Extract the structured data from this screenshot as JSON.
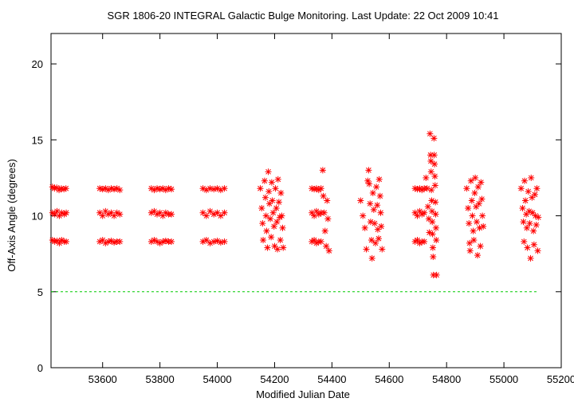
{
  "chart_data": {
    "type": "scatter",
    "title": "SGR 1806-20   INTEGRAL Galactic Bulge Monitoring.  Last Update: 22 Oct 2009 10:41",
    "xlabel": "Modified Julian Date",
    "ylabel": "Off-Axis Angle (degrees)",
    "xlim": [
      53420,
      55200
    ],
    "ylim": [
      0,
      22
    ],
    "xticks": [
      53600,
      53800,
      54000,
      54200,
      54400,
      54600,
      54800,
      55000,
      55200
    ],
    "yticks": [
      0,
      5,
      10,
      15,
      20
    ],
    "grid": false,
    "reference_line": {
      "y": 5,
      "x_range": [
        53420,
        55120
      ],
      "color": "#00cc00",
      "style": "dashed"
    },
    "series": [
      {
        "marker": "asterisk",
        "color": "#ff0000",
        "points": [
          [
            53425,
            11.9
          ],
          [
            53432,
            11.8
          ],
          [
            53440,
            11.85
          ],
          [
            53448,
            11.7
          ],
          [
            53456,
            11.8
          ],
          [
            53465,
            11.75
          ],
          [
            53472,
            11.8
          ],
          [
            53425,
            10.2
          ],
          [
            53433,
            10.1
          ],
          [
            53441,
            10.3
          ],
          [
            53449,
            10.0
          ],
          [
            53457,
            10.2
          ],
          [
            53466,
            10.1
          ],
          [
            53473,
            10.2
          ],
          [
            53425,
            8.4
          ],
          [
            53433,
            8.3
          ],
          [
            53441,
            8.35
          ],
          [
            53449,
            8.2
          ],
          [
            53457,
            8.4
          ],
          [
            53466,
            8.3
          ],
          [
            53473,
            8.3
          ],
          [
            53590,
            11.8
          ],
          [
            53600,
            11.75
          ],
          [
            53610,
            11.8
          ],
          [
            53620,
            11.7
          ],
          [
            53630,
            11.8
          ],
          [
            53640,
            11.75
          ],
          [
            53650,
            11.8
          ],
          [
            53660,
            11.7
          ],
          [
            53590,
            10.2
          ],
          [
            53600,
            10.0
          ],
          [
            53610,
            10.3
          ],
          [
            53620,
            10.1
          ],
          [
            53630,
            10.2
          ],
          [
            53640,
            10.0
          ],
          [
            53650,
            10.2
          ],
          [
            53660,
            10.1
          ],
          [
            53590,
            8.3
          ],
          [
            53600,
            8.4
          ],
          [
            53610,
            8.2
          ],
          [
            53620,
            8.3
          ],
          [
            53630,
            8.35
          ],
          [
            53640,
            8.25
          ],
          [
            53650,
            8.3
          ],
          [
            53660,
            8.3
          ],
          [
            53770,
            11.8
          ],
          [
            53780,
            11.7
          ],
          [
            53790,
            11.8
          ],
          [
            53800,
            11.75
          ],
          [
            53810,
            11.8
          ],
          [
            53820,
            11.7
          ],
          [
            53830,
            11.8
          ],
          [
            53840,
            11.75
          ],
          [
            53770,
            10.2
          ],
          [
            53780,
            10.3
          ],
          [
            53790,
            10.1
          ],
          [
            53800,
            10.2
          ],
          [
            53810,
            10.0
          ],
          [
            53820,
            10.2
          ],
          [
            53830,
            10.1
          ],
          [
            53840,
            10.1
          ],
          [
            53770,
            8.3
          ],
          [
            53780,
            8.4
          ],
          [
            53790,
            8.3
          ],
          [
            53800,
            8.2
          ],
          [
            53810,
            8.3
          ],
          [
            53820,
            8.35
          ],
          [
            53830,
            8.3
          ],
          [
            53840,
            8.3
          ],
          [
            53950,
            11.8
          ],
          [
            53962,
            11.7
          ],
          [
            53975,
            11.8
          ],
          [
            53988,
            11.75
          ],
          [
            54000,
            11.8
          ],
          [
            54012,
            11.7
          ],
          [
            54025,
            11.8
          ],
          [
            53950,
            10.2
          ],
          [
            53962,
            10.0
          ],
          [
            53975,
            10.3
          ],
          [
            53988,
            10.1
          ],
          [
            54000,
            10.2
          ],
          [
            54012,
            10.0
          ],
          [
            54025,
            10.2
          ],
          [
            53950,
            8.3
          ],
          [
            53962,
            8.4
          ],
          [
            53975,
            8.2
          ],
          [
            53988,
            8.3
          ],
          [
            54000,
            8.35
          ],
          [
            54012,
            8.25
          ],
          [
            54025,
            8.3
          ],
          [
            54150,
            11.8
          ],
          [
            54155,
            10.5
          ],
          [
            54158,
            9.5
          ],
          [
            54160,
            8.4
          ],
          [
            54165,
            12.3
          ],
          [
            54168,
            11.2
          ],
          [
            54170,
            10.0
          ],
          [
            54172,
            9.0
          ],
          [
            54175,
            7.9
          ],
          [
            54178,
            12.9
          ],
          [
            54180,
            11.6
          ],
          [
            54182,
            10.8
          ],
          [
            54185,
            9.8
          ],
          [
            54188,
            8.6
          ],
          [
            54190,
            12.2
          ],
          [
            54192,
            11.0
          ],
          [
            54195,
            10.2
          ],
          [
            54198,
            9.3
          ],
          [
            54200,
            8.0
          ],
          [
            54203,
            11.8
          ],
          [
            54206,
            10.5
          ],
          [
            54208,
            9.6
          ],
          [
            54210,
            7.8
          ],
          [
            54212,
            12.4
          ],
          [
            54215,
            10.9
          ],
          [
            54218,
            9.9
          ],
          [
            54220,
            8.4
          ],
          [
            54222,
            11.5
          ],
          [
            54225,
            10.0
          ],
          [
            54228,
            9.2
          ],
          [
            54230,
            7.9
          ],
          [
            54330,
            11.8
          ],
          [
            54338,
            11.75
          ],
          [
            54346,
            11.8
          ],
          [
            54354,
            11.7
          ],
          [
            54362,
            11.8
          ],
          [
            54330,
            10.2
          ],
          [
            54338,
            10.0
          ],
          [
            54346,
            10.3
          ],
          [
            54354,
            10.1
          ],
          [
            54362,
            10.2
          ],
          [
            54330,
            8.3
          ],
          [
            54338,
            8.4
          ],
          [
            54346,
            8.2
          ],
          [
            54354,
            8.3
          ],
          [
            54362,
            8.3
          ],
          [
            54368,
            13.0
          ],
          [
            54370,
            11.3
          ],
          [
            54373,
            10.2
          ],
          [
            54376,
            9.0
          ],
          [
            54380,
            8.0
          ],
          [
            54383,
            11.0
          ],
          [
            54386,
            9.8
          ],
          [
            54390,
            7.7
          ],
          [
            54500,
            11.0
          ],
          [
            54508,
            10.0
          ],
          [
            54515,
            9.2
          ],
          [
            54520,
            7.8
          ],
          [
            54525,
            12.3
          ],
          [
            54528,
            13.0
          ],
          [
            54530,
            12.1
          ],
          [
            54533,
            10.8
          ],
          [
            54535,
            9.6
          ],
          [
            54538,
            8.4
          ],
          [
            54540,
            7.2
          ],
          [
            54543,
            11.5
          ],
          [
            54546,
            10.4
          ],
          [
            54549,
            9.5
          ],
          [
            54552,
            8.2
          ],
          [
            54555,
            11.9
          ],
          [
            54558,
            10.7
          ],
          [
            54560,
            9.1
          ],
          [
            54563,
            8.5
          ],
          [
            54565,
            12.4
          ],
          [
            54568,
            11.3
          ],
          [
            54570,
            10.2
          ],
          [
            54572,
            9.3
          ],
          [
            54575,
            7.8
          ],
          [
            54690,
            11.8
          ],
          [
            54698,
            11.75
          ],
          [
            54706,
            11.8
          ],
          [
            54714,
            11.7
          ],
          [
            54722,
            11.8
          ],
          [
            54690,
            10.2
          ],
          [
            54698,
            10.0
          ],
          [
            54706,
            10.3
          ],
          [
            54714,
            10.1
          ],
          [
            54722,
            10.2
          ],
          [
            54690,
            8.3
          ],
          [
            54698,
            8.4
          ],
          [
            54706,
            8.2
          ],
          [
            54714,
            8.3
          ],
          [
            54722,
            8.3
          ],
          [
            54728,
            12.5
          ],
          [
            54732,
            11.8
          ],
          [
            54735,
            10.6
          ],
          [
            54738,
            9.8
          ],
          [
            54740,
            8.9
          ],
          [
            54742,
            15.4
          ],
          [
            54744,
            14.0
          ],
          [
            54745,
            13.6
          ],
          [
            54746,
            12.9
          ],
          [
            54747,
            11.7
          ],
          [
            54748,
            11.0
          ],
          [
            54749,
            10.3
          ],
          [
            54750,
            9.6
          ],
          [
            54751,
            8.8
          ],
          [
            54752,
            7.9
          ],
          [
            54753,
            7.3
          ],
          [
            54754,
            6.1
          ],
          [
            54756,
            15.1
          ],
          [
            54757,
            14.0
          ],
          [
            54758,
            13.4
          ],
          [
            54759,
            12.6
          ],
          [
            54760,
            12.0
          ],
          [
            54761,
            10.9
          ],
          [
            54762,
            10.1
          ],
          [
            54763,
            9.2
          ],
          [
            54764,
            8.4
          ],
          [
            54765,
            6.1
          ],
          [
            54870,
            11.8
          ],
          [
            54875,
            10.5
          ],
          [
            54878,
            9.5
          ],
          [
            54880,
            8.2
          ],
          [
            54882,
            7.7
          ],
          [
            54885,
            12.3
          ],
          [
            54888,
            11.0
          ],
          [
            54890,
            10.0
          ],
          [
            54893,
            9.0
          ],
          [
            54895,
            8.4
          ],
          [
            54898,
            11.5
          ],
          [
            54900,
            12.5
          ],
          [
            54903,
            10.6
          ],
          [
            54905,
            9.6
          ],
          [
            54908,
            7.4
          ],
          [
            54910,
            11.9
          ],
          [
            54913,
            10.8
          ],
          [
            54915,
            9.2
          ],
          [
            54918,
            8.0
          ],
          [
            54920,
            12.2
          ],
          [
            54923,
            11.1
          ],
          [
            54925,
            10.0
          ],
          [
            54928,
            9.3
          ],
          [
            55060,
            11.8
          ],
          [
            55065,
            10.5
          ],
          [
            55068,
            9.6
          ],
          [
            55070,
            8.3
          ],
          [
            55072,
            12.3
          ],
          [
            55075,
            11.0
          ],
          [
            55078,
            10.1
          ],
          [
            55080,
            9.2
          ],
          [
            55082,
            7.9
          ],
          [
            55085,
            11.6
          ],
          [
            55088,
            10.3
          ],
          [
            55090,
            9.5
          ],
          [
            55093,
            7.2
          ],
          [
            55095,
            12.5
          ],
          [
            55098,
            11.2
          ],
          [
            55100,
            10.2
          ],
          [
            55103,
            9.0
          ],
          [
            55105,
            8.1
          ],
          [
            55108,
            11.4
          ],
          [
            55110,
            10.0
          ],
          [
            55113,
            9.4
          ],
          [
            55115,
            11.8
          ],
          [
            55118,
            7.7
          ],
          [
            55120,
            9.9
          ]
        ]
      }
    ]
  }
}
